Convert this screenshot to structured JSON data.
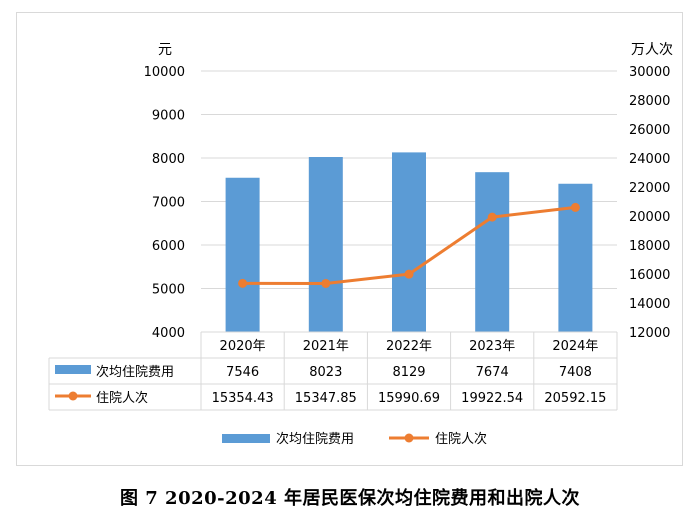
{
  "caption": "图 7   2020-2024 年居民医保次均住院费用和出院人次",
  "colors": {
    "bar": "#5b9bd5",
    "line": "#ed7d31",
    "grid": "#d9d9d9"
  },
  "chart_data": {
    "type": "bar",
    "title": "",
    "categories": [
      "2020年",
      "2021年",
      "2022年",
      "2023年",
      "2024年"
    ],
    "y_left": {
      "unit": "元",
      "range": [
        4000,
        10000
      ],
      "ticks": [
        "4000",
        "5000",
        "6000",
        "7000",
        "8000",
        "9000",
        "10000"
      ]
    },
    "y_right": {
      "unit": "万人次",
      "range": [
        12000,
        30000
      ],
      "ticks": [
        "12000",
        "14000",
        "16000",
        "18000",
        "20000",
        "22000",
        "24000",
        "26000",
        "28000",
        "30000"
      ]
    },
    "series": [
      {
        "name": "次均住院费用",
        "type": "bar",
        "axis": "left",
        "values": [
          7546,
          8023,
          8129,
          7674,
          7408
        ],
        "labels": [
          "7546",
          "8023",
          "8129",
          "7674",
          "7408"
        ]
      },
      {
        "name": "住院人次",
        "type": "line",
        "axis": "right",
        "values": [
          15354.43,
          15347.85,
          15990.69,
          19922.54,
          20592.15
        ],
        "labels": [
          "15354.43",
          "15347.85",
          "15990.69",
          "19922.54",
          "20592.15"
        ]
      }
    ],
    "grid": true,
    "legend": "bottom",
    "data_table": true
  }
}
